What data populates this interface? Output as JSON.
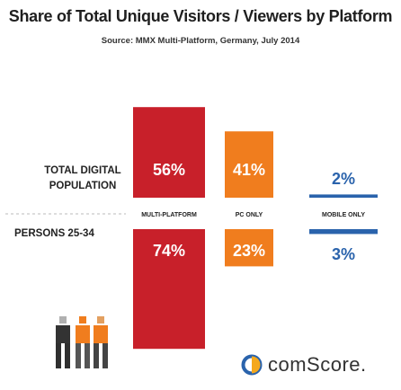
{
  "header": {
    "title": "Share of Total Unique Visitors / Viewers by Platform",
    "subtitle": "Source: MMX Multi-Platform, Germany, July 2014"
  },
  "chart_data": {
    "type": "bar",
    "categories": [
      "MULTI-PLATFORM",
      "PC ONLY",
      "MOBILE ONLY"
    ],
    "series": [
      {
        "name": "TOTAL DIGITAL POPULATION",
        "values": [
          56,
          41,
          2
        ],
        "labels": [
          "56%",
          "41%",
          "2%"
        ]
      },
      {
        "name": "PERSONS 25-34",
        "values": [
          74,
          23,
          3
        ],
        "labels": [
          "74%",
          "23%",
          "3%"
        ]
      }
    ],
    "xlabel": "",
    "ylabel": "",
    "ylim": [
      0,
      100
    ],
    "colors": [
      "#c8202a",
      "#f07d1e",
      "#2a63ac"
    ]
  },
  "logo": {
    "text": "comScore."
  }
}
